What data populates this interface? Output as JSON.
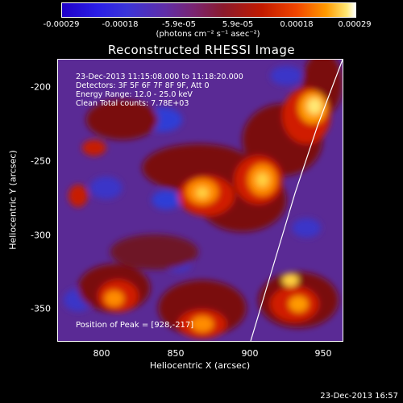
{
  "colorbar": {
    "ticks": [
      "-0.00029",
      "-0.00018",
      "-5.9e-05",
      "5.9e-05",
      "0.00018",
      "0.00029"
    ],
    "unit": "(photons cm⁻² s⁻¹ asec⁻²)",
    "gradient_colors": [
      "#1f00c8",
      "#3a34d8",
      "#7a2470",
      "#c21a00",
      "#ff9a00",
      "#ffffff"
    ]
  },
  "chart_data": {
    "type": "heatmap",
    "title": "Reconstructed RHESSI Image",
    "xlabel": "Heliocentric X (arcsec)",
    "ylabel": "Heliocentric Y (arcsec)",
    "xlim": [
      770,
      962
    ],
    "ylim": [
      -375,
      -185
    ],
    "xticks": [
      "800",
      "850",
      "900",
      "950"
    ],
    "yticks": [
      "-200",
      "-250",
      "-300",
      "-350"
    ],
    "zlim": [
      -0.00029,
      0.00029
    ],
    "limb_curve": {
      "x": [
        900,
        915,
        930,
        945,
        962
      ],
      "y": [
        -375,
        -325,
        -275,
        -230,
        -185
      ]
    },
    "peak": {
      "x": 928,
      "y": -217
    },
    "info_lines": [
      "23-Dec-2013 11:15:08.000 to 11:18:20.000",
      "Detectors: 3F 5F 6F 7F 8F 9F, Att 0",
      "Energy Range: 12.0 - 25.0 keV",
      "Clean    Total counts: 7.78E+03"
    ],
    "peak_text": "Position of Peak = [928,-217]"
  },
  "footer": {
    "timestamp": "23-Dec-2013 16:57"
  }
}
